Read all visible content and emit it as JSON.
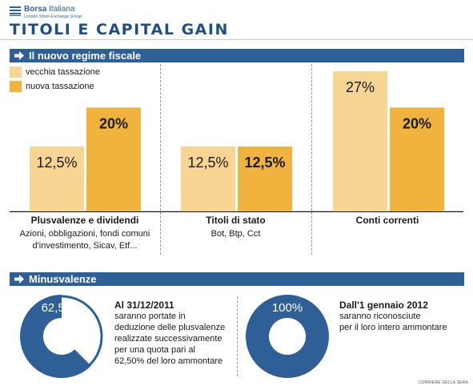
{
  "header": {
    "brand_bold": "Borsa",
    "brand_light": "Italiana",
    "brand_sub": "London Stock Exchange Group",
    "title": "TITOLI E CAPITAL GAIN"
  },
  "section1": {
    "title": "Il nuovo regime fiscale"
  },
  "section2": {
    "title": "Minusvalenze"
  },
  "colors": {
    "old": "#f8d592",
    "new": "#f0b43e",
    "band": "#2e5f96",
    "donut": "#2e5f96"
  },
  "chart_data": {
    "type": "bar",
    "categories": [
      "Plusvalenze e dividendi",
      "Titoli di stato",
      "Conti correnti"
    ],
    "category_subtitles": [
      "Azioni, obbligazioni, fondi comuni\nd'investimento, Sicav, Etf...",
      "Bot, Btp, Cct",
      ""
    ],
    "series": [
      {
        "name": "vecchia tassazione",
        "values": [
          12.5,
          12.5,
          27
        ],
        "labels": [
          "12,5%",
          "12,5%",
          "27%"
        ]
      },
      {
        "name": "nuova tassazione",
        "values": [
          20,
          12.5,
          20
        ],
        "labels": [
          "20%",
          "12,5%",
          "20%"
        ]
      }
    ],
    "ylim": [
      0,
      27
    ],
    "grid": false,
    "legend": "top-left"
  },
  "minusvalenze": [
    {
      "percent": 62.5,
      "label": "62,50%",
      "heading": "Al 31/12/2011",
      "text": "saranno portate in\ndeduzione delle plusvalenze\nrealizzate successivamente\nper una quota pari al\n62,50% del loro ammontare"
    },
    {
      "percent": 100,
      "label": "100%",
      "heading": "Dall'1 gennaio 2012",
      "text": "saranno riconosciute\nper il loro intero ammontare"
    }
  ],
  "credit": "CORRIERE DELLA SERA"
}
